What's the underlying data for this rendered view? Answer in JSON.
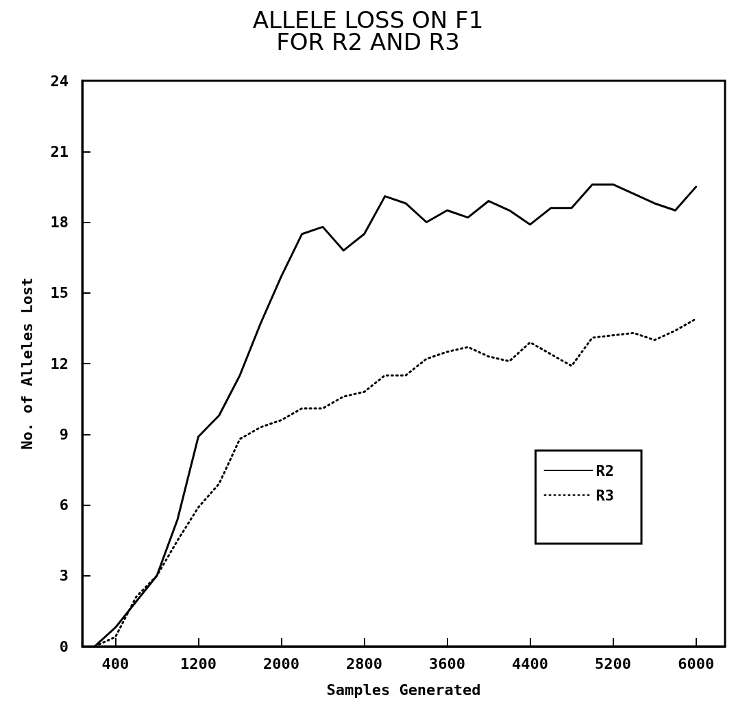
{
  "chart_data": {
    "type": "line",
    "title": "ALLELE LOSS ON F1\nFOR R2 AND R3",
    "xlabel": "Samples Generated",
    "ylabel": "No. of Alleles Lost",
    "x": [
      200,
      400,
      600,
      800,
      1000,
      1200,
      1400,
      1600,
      1800,
      2000,
      2200,
      2400,
      2600,
      2800,
      3000,
      3200,
      3400,
      3600,
      3800,
      4000,
      4200,
      4400,
      4600,
      4800,
      5000,
      5200,
      5400,
      5600,
      5800,
      6000
    ],
    "series": [
      {
        "name": "R2",
        "color": "#000000",
        "line_style": "solid",
        "values": [
          0,
          0.8,
          1.9,
          3.0,
          5.4,
          8.9,
          9.8,
          11.5,
          13.7,
          15.7,
          17.5,
          17.8,
          16.8,
          17.5,
          19.1,
          18.8,
          18.0,
          18.5,
          18.2,
          18.9,
          18.5,
          17.9,
          18.6,
          18.6,
          19.6,
          19.6,
          19.2,
          18.8,
          18.5,
          19.5
        ]
      },
      {
        "name": "R3",
        "color": "#000000",
        "line_style": "dotted",
        "values": [
          0,
          0.4,
          2.1,
          3.0,
          4.5,
          5.9,
          6.9,
          8.8,
          9.3,
          9.6,
          10.1,
          10.1,
          10.6,
          10.8,
          11.5,
          11.5,
          12.2,
          12.5,
          12.7,
          12.3,
          12.1,
          12.9,
          12.4,
          11.9,
          13.1,
          13.2,
          13.3,
          13.0,
          13.4,
          13.9
        ]
      }
    ],
    "xlim": [
      80,
      6280
    ],
    "xticks": [
      400,
      1200,
      2000,
      2800,
      3600,
      4400,
      5200,
      6000
    ],
    "ylim": [
      0,
      24
    ],
    "yticks": [
      0,
      3,
      6,
      9,
      12,
      15,
      18,
      21,
      24
    ],
    "grid": false,
    "legend": "right",
    "marker": "none"
  }
}
